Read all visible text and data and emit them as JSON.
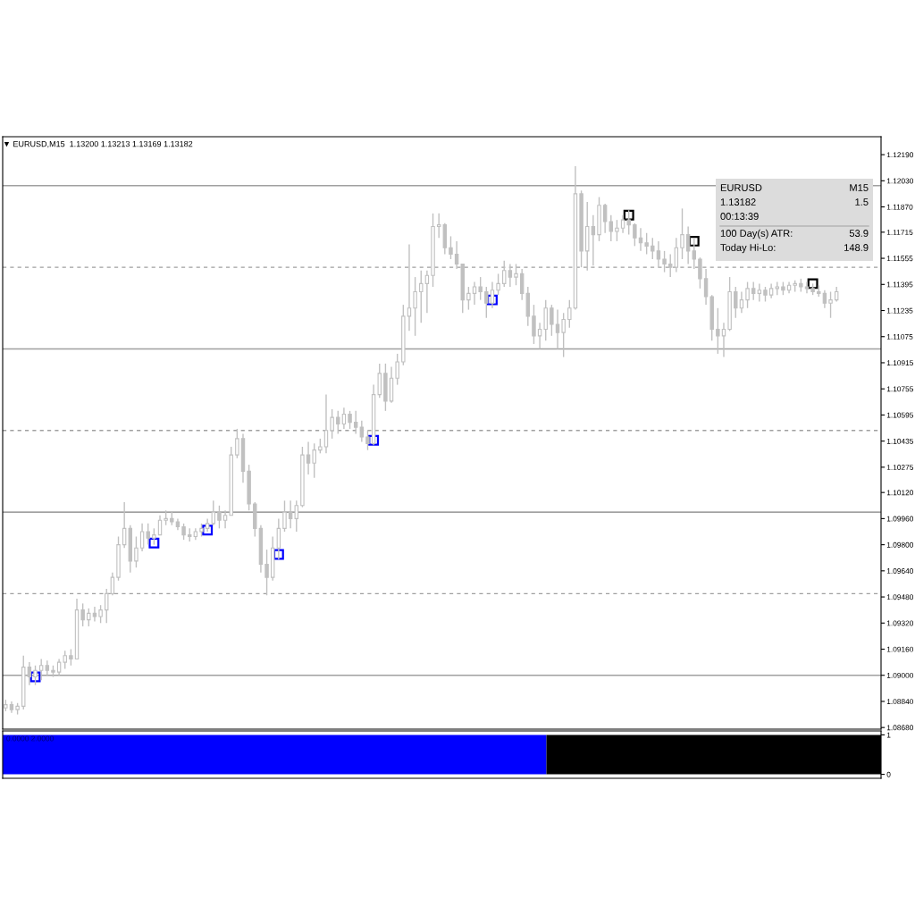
{
  "chart_data": [
    {
      "type": "candlestick",
      "title": "▼ EURUSD,M15  1.13200 1.13213 1.13169 1.13182",
      "color": "#c0c0c0",
      "marker": "square",
      "tick_labels": "y",
      "categories": [
        null,
        null,
        null,
        null,
        null,
        null,
        null,
        null,
        null,
        null,
        null,
        null,
        null,
        null,
        null,
        null,
        null,
        null,
        null,
        null,
        null,
        null,
        null,
        null,
        null,
        null,
        null,
        null,
        null,
        null,
        null,
        null,
        null,
        null,
        null,
        null,
        null,
        null,
        null,
        null,
        null,
        null,
        null,
        null,
        null,
        null,
        null,
        null,
        null,
        null,
        null,
        null,
        null,
        null,
        null,
        null,
        null,
        null,
        null,
        null,
        null,
        null,
        null,
        null,
        null,
        null,
        null,
        null,
        null,
        null,
        null,
        null,
        null,
        null,
        null,
        null,
        null,
        null,
        null,
        null,
        null,
        null,
        null,
        null,
        null,
        null,
        null,
        null,
        null,
        null,
        null,
        null,
        null,
        null,
        null,
        null,
        null,
        null,
        null,
        null,
        null,
        null,
        null,
        null,
        null,
        null,
        null,
        null,
        null,
        null,
        null,
        null,
        null,
        null,
        null,
        null,
        null,
        null,
        null,
        null,
        null,
        null,
        null,
        null,
        null,
        null,
        null,
        null,
        null,
        null,
        null,
        null,
        null,
        null,
        null,
        null,
        null,
        null,
        null,
        null,
        null,
        null,
        null,
        null,
        null,
        null,
        null,
        null
      ],
      "ohlc": [
        [
          1.088,
          1.0885,
          1.0878,
          1.0882
        ],
        [
          1.0882,
          1.0884,
          1.0877,
          1.0879
        ],
        [
          1.0879,
          1.0883,
          1.0876,
          1.0881
        ],
        [
          1.0881,
          1.0912,
          1.0879,
          1.0905
        ],
        [
          1.0905,
          1.0908,
          1.0894,
          1.0899
        ],
        [
          1.0899,
          1.0906,
          1.0894,
          1.0903
        ],
        [
          1.0903,
          1.091,
          1.0897,
          1.0906
        ],
        [
          1.0906,
          1.0909,
          1.09,
          1.0903
        ],
        [
          1.0903,
          1.0906,
          1.0899,
          1.0902
        ],
        [
          1.0902,
          1.091,
          1.09,
          1.0908
        ],
        [
          1.0908,
          1.0915,
          1.0904,
          1.0912
        ],
        [
          1.0912,
          1.0916,
          1.0906,
          1.091
        ],
        [
          1.091,
          1.0947,
          1.091,
          1.094
        ],
        [
          1.094,
          1.0944,
          1.093,
          1.0934
        ],
        [
          1.0934,
          1.0941,
          1.093,
          1.0938
        ],
        [
          1.0938,
          1.0942,
          1.0933,
          1.0936
        ],
        [
          1.0936,
          1.0943,
          1.0932,
          1.094
        ],
        [
          1.094,
          1.0953,
          1.0932,
          1.095
        ],
        [
          1.095,
          1.0963,
          1.0949,
          1.096
        ],
        [
          1.096,
          1.0985,
          1.0958,
          1.098
        ],
        [
          1.098,
          1.1006,
          1.0978,
          1.099
        ],
        [
          1.099,
          1.0992,
          1.0963,
          1.097
        ],
        [
          1.097,
          1.0985,
          1.0966,
          1.0978
        ],
        [
          1.0978,
          1.0993,
          1.0976,
          1.0988
        ],
        [
          1.0988,
          1.0993,
          1.098,
          1.0984
        ],
        [
          1.0984,
          1.099,
          1.098,
          1.0986
        ],
        [
          1.0986,
          1.0998,
          1.0986,
          1.0995
        ],
        [
          1.0995,
          1.1001,
          1.0992,
          1.0996
        ],
        [
          1.0996,
          1.1,
          1.0992,
          1.0994
        ],
        [
          1.0994,
          1.0996,
          1.0989,
          1.0991
        ],
        [
          1.0991,
          1.0993,
          1.0983,
          1.0986
        ],
        [
          1.0986,
          1.099,
          1.0982,
          1.0985
        ],
        [
          1.0985,
          1.099,
          1.0983,
          1.0988
        ],
        [
          1.0988,
          1.0993,
          1.0985,
          1.099
        ],
        [
          1.099,
          1.0996,
          1.0988,
          1.0993
        ],
        [
          1.0993,
          1.1007,
          1.0992,
          1.1
        ],
        [
          1.1,
          1.1004,
          1.099,
          1.0995
        ],
        [
          1.0995,
          1.1001,
          1.099,
          1.0998
        ],
        [
          1.0998,
          1.104,
          1.0998,
          1.1035
        ],
        [
          1.1035,
          1.1051,
          1.1033,
          1.1045
        ],
        [
          1.1045,
          1.1048,
          1.1018,
          1.1025
        ],
        [
          1.1025,
          1.1029,
          1.1001,
          1.1005
        ],
        [
          1.1005,
          1.1006,
          1.0985,
          1.099
        ],
        [
          1.099,
          1.0992,
          1.0963,
          1.0968
        ],
        [
          1.0968,
          1.0977,
          1.0949,
          1.096
        ],
        [
          1.096,
          1.0985,
          1.0958,
          1.0978
        ],
        [
          1.0978,
          1.0996,
          1.0971,
          1.099
        ],
        [
          1.099,
          1.1007,
          1.0988,
          1.1
        ],
        [
          1.1,
          1.1007,
          1.099,
          1.0996
        ],
        [
          1.0996,
          1.1007,
          1.0988,
          1.1004
        ],
        [
          1.1004,
          1.104,
          1.1003,
          1.1035
        ],
        [
          1.1035,
          1.1043,
          1.1023,
          1.103
        ],
        [
          1.103,
          1.1042,
          1.1021,
          1.1038
        ],
        [
          1.1038,
          1.1045,
          1.1036,
          1.104
        ],
        [
          1.104,
          1.1072,
          1.1036,
          1.105
        ],
        [
          1.105,
          1.1063,
          1.1045,
          1.1058
        ],
        [
          1.1058,
          1.1062,
          1.1048,
          1.1054
        ],
        [
          1.1054,
          1.1064,
          1.1051,
          1.106
        ],
        [
          1.106,
          1.1062,
          1.1051,
          1.1055
        ],
        [
          1.1055,
          1.1062,
          1.1048,
          1.1052
        ],
        [
          1.1052,
          1.1056,
          1.1043,
          1.1046
        ],
        [
          1.1046,
          1.105,
          1.1038,
          1.1042
        ],
        [
          1.1042,
          1.1078,
          1.1041,
          1.1072
        ],
        [
          1.1072,
          1.1091,
          1.107,
          1.1085
        ],
        [
          1.1085,
          1.1091,
          1.1062,
          1.1068
        ],
        [
          1.1068,
          1.1089,
          1.1067,
          1.1082
        ],
        [
          1.1082,
          1.1097,
          1.1078,
          1.1092
        ],
        [
          1.1092,
          1.1127,
          1.109,
          1.112
        ],
        [
          1.112,
          1.1164,
          1.1111,
          1.1125
        ],
        [
          1.1125,
          1.1144,
          1.1108,
          1.1135
        ],
        [
          1.1135,
          1.1148,
          1.1116,
          1.114
        ],
        [
          1.114,
          1.1148,
          1.1122,
          1.1145
        ],
        [
          1.1145,
          1.1183,
          1.1138,
          1.1175
        ],
        [
          1.1175,
          1.1183,
          1.1168,
          1.1176
        ],
        [
          1.1176,
          1.1177,
          1.1158,
          1.1162
        ],
        [
          1.1162,
          1.1169,
          1.1155,
          1.1158
        ],
        [
          1.1158,
          1.1166,
          1.1149,
          1.1152
        ],
        [
          1.1152,
          1.1152,
          1.1122,
          1.113
        ],
        [
          1.113,
          1.1138,
          1.1124,
          1.1134
        ],
        [
          1.1134,
          1.1141,
          1.1127,
          1.1138
        ],
        [
          1.1138,
          1.1144,
          1.113,
          1.1135
        ],
        [
          1.1135,
          1.1138,
          1.1119,
          1.1128
        ],
        [
          1.1128,
          1.1141,
          1.1125,
          1.1136
        ],
        [
          1.1136,
          1.1146,
          1.1133,
          1.114
        ],
        [
          1.114,
          1.1154,
          1.1138,
          1.1148
        ],
        [
          1.1148,
          1.1152,
          1.1138,
          1.1144
        ],
        [
          1.1144,
          1.1152,
          1.1139,
          1.1146
        ],
        [
          1.1146,
          1.1149,
          1.113,
          1.1134
        ],
        [
          1.1134,
          1.1138,
          1.1114,
          1.112
        ],
        [
          1.112,
          1.1127,
          1.1103,
          1.1108
        ],
        [
          1.1108,
          1.1116,
          1.11,
          1.1112
        ],
        [
          1.1112,
          1.113,
          1.1105,
          1.1125
        ],
        [
          1.1125,
          1.1127,
          1.1108,
          1.1115
        ],
        [
          1.1115,
          1.1124,
          1.11,
          1.111
        ],
        [
          1.111,
          1.1122,
          1.1095,
          1.1118
        ],
        [
          1.1118,
          1.113,
          1.1113,
          1.1125
        ],
        [
          1.1125,
          1.1212,
          1.1124,
          1.1195
        ],
        [
          1.1195,
          1.1197,
          1.115,
          1.116
        ],
        [
          1.116,
          1.119,
          1.1148,
          1.1175
        ],
        [
          1.1175,
          1.1182,
          1.1151,
          1.117
        ],
        [
          1.117,
          1.1193,
          1.1166,
          1.1188
        ],
        [
          1.1188,
          1.1189,
          1.1171,
          1.1178
        ],
        [
          1.1178,
          1.1182,
          1.1166,
          1.1172
        ],
        [
          1.1172,
          1.1179,
          1.1166,
          1.1174
        ],
        [
          1.1174,
          1.1182,
          1.1171,
          1.1179
        ],
        [
          1.1179,
          1.1185,
          1.117,
          1.1176
        ],
        [
          1.1176,
          1.1177,
          1.1163,
          1.1168
        ],
        [
          1.1168,
          1.1174,
          1.116,
          1.1165
        ],
        [
          1.1165,
          1.1171,
          1.1158,
          1.1163
        ],
        [
          1.1163,
          1.1168,
          1.1155,
          1.116
        ],
        [
          1.116,
          1.1166,
          1.115,
          1.1155
        ],
        [
          1.1155,
          1.116,
          1.1147,
          1.1152
        ],
        [
          1.1152,
          1.1158,
          1.1144,
          1.115
        ],
        [
          1.115,
          1.1168,
          1.1147,
          1.1162
        ],
        [
          1.1162,
          1.1186,
          1.1155,
          1.117
        ],
        [
          1.117,
          1.1175,
          1.1152,
          1.116
        ],
        [
          1.116,
          1.1168,
          1.1149,
          1.1155
        ],
        [
          1.1155,
          1.1156,
          1.1137,
          1.1143
        ],
        [
          1.1143,
          1.1149,
          1.1127,
          1.1132
        ],
        [
          1.1132,
          1.1133,
          1.1105,
          1.1112
        ],
        [
          1.1112,
          1.1125,
          1.1097,
          1.1108
        ],
        [
          1.1108,
          1.1116,
          1.1095,
          1.1112
        ],
        [
          1.1112,
          1.1144,
          1.1111,
          1.1135
        ],
        [
          1.1135,
          1.1138,
          1.1119,
          1.1125
        ],
        [
          1.1125,
          1.1135,
          1.1122,
          1.113
        ],
        [
          1.113,
          1.1141,
          1.1125,
          1.1137
        ],
        [
          1.1137,
          1.1141,
          1.113,
          1.1134
        ],
        [
          1.1134,
          1.114,
          1.1129,
          1.1136
        ],
        [
          1.1136,
          1.1138,
          1.1129,
          1.1133
        ],
        [
          1.1133,
          1.114,
          1.1131,
          1.1137
        ],
        [
          1.1137,
          1.1141,
          1.1133,
          1.1138
        ],
        [
          1.1138,
          1.1141,
          1.1133,
          1.1136
        ],
        [
          1.1136,
          1.1141,
          1.1134,
          1.1139
        ],
        [
          1.1139,
          1.1142,
          1.1135,
          1.114
        ],
        [
          1.114,
          1.1143,
          1.1135,
          1.1138
        ],
        [
          1.1138,
          1.1141,
          1.1134,
          1.1137
        ],
        [
          1.1137,
          1.114,
          1.1133,
          1.1135
        ],
        [
          1.1135,
          1.1139,
          1.1132,
          1.1134
        ],
        [
          1.1134,
          1.1136,
          1.1125,
          1.1128
        ],
        [
          1.1128,
          1.1135,
          1.1119,
          1.113
        ],
        [
          1.113,
          1.1138,
          1.1129,
          1.1135
        ],
        null,
        null,
        null,
        null,
        null,
        null,
        null
      ],
      "series": [
        {
          "type": "scatter",
          "color": "#0000ff",
          "values": [
            null,
            null,
            null,
            null,
            null,
            1.0899,
            null,
            null,
            null,
            null,
            null,
            null,
            null,
            null,
            null,
            null,
            null,
            null,
            null,
            null,
            null,
            null,
            null,
            null,
            null,
            1.0981,
            null,
            null,
            null,
            null,
            null,
            null,
            null,
            null,
            1.0989,
            null,
            null,
            null,
            null,
            null,
            null,
            null,
            null,
            null,
            null,
            null,
            1.0974,
            null,
            null,
            null,
            null,
            null,
            null,
            null,
            null,
            null,
            null,
            null,
            null,
            null,
            null,
            null,
            1.1044,
            null,
            null,
            null,
            null,
            null,
            null,
            null,
            null,
            null,
            null,
            null,
            null,
            null,
            null,
            null,
            null,
            null,
            null,
            null,
            1.113,
            null,
            null,
            null,
            null,
            null,
            null,
            null,
            null,
            null,
            null,
            null,
            null,
            null,
            null,
            null,
            null,
            null,
            null,
            null,
            null,
            null,
            null,
            null,
            null,
            null,
            null,
            null,
            null,
            null,
            null,
            null,
            null,
            null,
            null,
            null,
            null,
            null,
            null,
            null,
            null,
            null,
            null,
            null,
            null,
            null,
            null,
            null,
            null,
            null,
            null,
            null,
            null,
            null,
            null,
            null,
            null,
            null,
            null,
            null,
            null,
            null,
            null,
            null,
            null,
            null
          ]
        },
        {
          "type": "scatter",
          "color": "#000000",
          "values": [
            null,
            null,
            null,
            null,
            null,
            null,
            null,
            null,
            null,
            null,
            null,
            null,
            null,
            null,
            null,
            null,
            null,
            null,
            null,
            null,
            null,
            null,
            null,
            null,
            null,
            null,
            null,
            null,
            null,
            null,
            null,
            null,
            null,
            null,
            null,
            null,
            null,
            null,
            null,
            null,
            null,
            null,
            null,
            null,
            null,
            null,
            null,
            null,
            null,
            null,
            null,
            null,
            null,
            null,
            null,
            null,
            null,
            null,
            null,
            null,
            null,
            null,
            null,
            null,
            null,
            null,
            null,
            null,
            null,
            null,
            null,
            null,
            null,
            null,
            null,
            null,
            null,
            null,
            null,
            null,
            null,
            null,
            null,
            null,
            null,
            null,
            null,
            null,
            null,
            null,
            null,
            null,
            null,
            null,
            null,
            null,
            null,
            null,
            null,
            null,
            null,
            null,
            null,
            null,
            null,
            1.1182,
            null,
            null,
            null,
            null,
            null,
            null,
            null,
            null,
            null,
            null,
            1.1166,
            null,
            null,
            null,
            null,
            null,
            null,
            null,
            null,
            null,
            null,
            null,
            null,
            null,
            null,
            null,
            null,
            null,
            null,
            null,
            1.114,
            null,
            null,
            null,
            null,
            null,
            null,
            null,
            null,
            null,
            null,
            null
          ]
        }
      ],
      "ylim": [
        1.0867,
        1.123
      ],
      "yticks": [
        {
          "value": 1.1219,
          "label": "1.12190"
        },
        {
          "value": 1.1203,
          "label": "1.12030"
        },
        {
          "value": 1.1187,
          "label": "1.11870"
        },
        {
          "value": 1.11715,
          "label": "1.11715"
        },
        {
          "value": 1.11555,
          "label": "1.11555"
        },
        {
          "value": 1.11395,
          "label": "1.11395"
        },
        {
          "value": 1.11235,
          "label": "1.11235"
        },
        {
          "value": 1.11075,
          "label": "1.11075"
        },
        {
          "value": 1.10915,
          "label": "1.10915"
        },
        {
          "value": 1.10755,
          "label": "1.10755"
        },
        {
          "value": 1.10595,
          "label": "1.10595"
        },
        {
          "value": 1.10435,
          "label": "1.10435"
        },
        {
          "value": 1.10275,
          "label": "1.10275"
        },
        {
          "value": 1.1012,
          "label": "1.10120"
        },
        {
          "value": 1.0996,
          "label": "1.09960"
        },
        {
          "value": 1.098,
          "label": "1.09800"
        },
        {
          "value": 1.0964,
          "label": "1.09640"
        },
        {
          "value": 1.0948,
          "label": "1.09480"
        },
        {
          "value": 1.0932,
          "label": "1.09320"
        },
        {
          "value": 1.0916,
          "label": "1.09160"
        },
        {
          "value": 1.09,
          "label": "1.09000"
        },
        {
          "value": 1.0884,
          "label": "1.08840"
        },
        {
          "value": 1.0868,
          "label": "1.08680"
        }
      ],
      "ref_lines": [
        {
          "axis": "y",
          "value": 1.12,
          "color": "#a0a0a0",
          "line_style": "solid"
        },
        {
          "axis": "y",
          "value": 1.115,
          "color": "#a0a0a0",
          "line_style": "dashed"
        },
        {
          "axis": "y",
          "value": 1.11,
          "color": "#a0a0a0",
          "line_style": "solid"
        },
        {
          "axis": "y",
          "value": 1.105,
          "color": "#a0a0a0",
          "line_style": "dashed"
        },
        {
          "axis": "y",
          "value": 1.1,
          "color": "#808080",
          "line_style": "solid"
        },
        {
          "axis": "y",
          "value": 1.095,
          "color": "#a0a0a0",
          "line_style": "dashed"
        },
        {
          "axis": "y",
          "value": 1.09,
          "color": "#a0a0a0",
          "line_style": "solid"
        }
      ],
      "annotations": [
        "EURUSD",
        "M15",
        "1.13182",
        "1.5",
        "00:13:39",
        "100 Day(s) ATR:",
        "53.9",
        "Today Hi-Lo:",
        "148.9"
      ]
    },
    {
      "type": "area",
      "tick_labels": "y",
      "categories": [
        null,
        null,
        null,
        null,
        null,
        null,
        null,
        null,
        null,
        null,
        null,
        null,
        null,
        null,
        null,
        null,
        null,
        null,
        null,
        null,
        null,
        null,
        null,
        null,
        null,
        null,
        null,
        null,
        null,
        null,
        null,
        null,
        null,
        null,
        null,
        null,
        null,
        null,
        null,
        null,
        null,
        null,
        null,
        null,
        null,
        null,
        null,
        null,
        null,
        null,
        null,
        null,
        null,
        null,
        null,
        null,
        null,
        null,
        null,
        null,
        null,
        null,
        null,
        null,
        null,
        null,
        null,
        null,
        null,
        null,
        null,
        null,
        null,
        null,
        null,
        null,
        null,
        null,
        null,
        null,
        null,
        null,
        null,
        null,
        null,
        null,
        null,
        null,
        null,
        null,
        null,
        null,
        null,
        null,
        null,
        null,
        null,
        null,
        null,
        null,
        null,
        null,
        null,
        null,
        null,
        null,
        null,
        null,
        null,
        null,
        null,
        null,
        null,
        null,
        null,
        null,
        null,
        null,
        null,
        null,
        null,
        null,
        null,
        null,
        null,
        null,
        null,
        null,
        null,
        null,
        null,
        null,
        null,
        null,
        null,
        null,
        null,
        null,
        null,
        null,
        null,
        null,
        null,
        null,
        null,
        null,
        null,
        null
      ],
      "series": [
        {
          "color": "#0000ff",
          "values": [
            1,
            1,
            1,
            1,
            1,
            1,
            1,
            1,
            1,
            1,
            1,
            1,
            1,
            1,
            1,
            1,
            1,
            1,
            1,
            1,
            1,
            1,
            1,
            1,
            1,
            1,
            1,
            1,
            1,
            1,
            1,
            1,
            1,
            1,
            1,
            1,
            1,
            1,
            1,
            1,
            1,
            1,
            1,
            1,
            1,
            1,
            1,
            1,
            1,
            1,
            1,
            1,
            1,
            1,
            1,
            1,
            1,
            1,
            1,
            1,
            1,
            1,
            1,
            1,
            1,
            1,
            1,
            1,
            1,
            1,
            1,
            1,
            1,
            1,
            1,
            1,
            1,
            1,
            1,
            1,
            1,
            1,
            1,
            1,
            1,
            1,
            1,
            1,
            1,
            1,
            1,
            1,
            null,
            null,
            null,
            null,
            null,
            null,
            null,
            null,
            null,
            null,
            null,
            null,
            null,
            null,
            null,
            null,
            null,
            null,
            null,
            null,
            null,
            null,
            null,
            null,
            null,
            null,
            null,
            null,
            null,
            null,
            null,
            null,
            null,
            null,
            null,
            null,
            null,
            null,
            null,
            null,
            null,
            null,
            null,
            null,
            null,
            null,
            null,
            null,
            null,
            null,
            null,
            null,
            null,
            null,
            null,
            null
          ]
        },
        {
          "color": "#000000",
          "values": [
            null,
            null,
            null,
            null,
            null,
            null,
            null,
            null,
            null,
            null,
            null,
            null,
            null,
            null,
            null,
            null,
            null,
            null,
            null,
            null,
            null,
            null,
            null,
            null,
            null,
            null,
            null,
            null,
            null,
            null,
            null,
            null,
            null,
            null,
            null,
            null,
            null,
            null,
            null,
            null,
            null,
            null,
            null,
            null,
            null,
            null,
            null,
            null,
            null,
            null,
            null,
            null,
            null,
            null,
            null,
            null,
            null,
            null,
            null,
            null,
            null,
            null,
            null,
            null,
            null,
            null,
            null,
            null,
            null,
            null,
            null,
            null,
            null,
            null,
            null,
            null,
            null,
            null,
            null,
            null,
            null,
            null,
            null,
            null,
            null,
            null,
            null,
            null,
            null,
            null,
            null,
            1,
            1,
            1,
            1,
            1,
            1,
            1,
            1,
            1,
            1,
            1,
            1,
            1,
            1,
            1,
            1,
            1,
            1,
            1,
            1,
            1,
            1,
            1,
            1,
            1,
            1,
            1,
            1,
            1,
            1,
            1,
            1,
            1,
            1,
            1,
            1,
            1,
            1,
            1,
            1,
            1,
            1,
            1,
            1,
            1,
            1,
            1,
            1,
            1,
            1,
            1,
            1,
            1,
            1,
            1,
            1,
            1
          ]
        }
      ],
      "ylim": [
        -0.1,
        1.1
      ],
      "yticks": [
        0,
        1
      ],
      "annotations": [
        "0.0000 2.0000"
      ]
    }
  ]
}
